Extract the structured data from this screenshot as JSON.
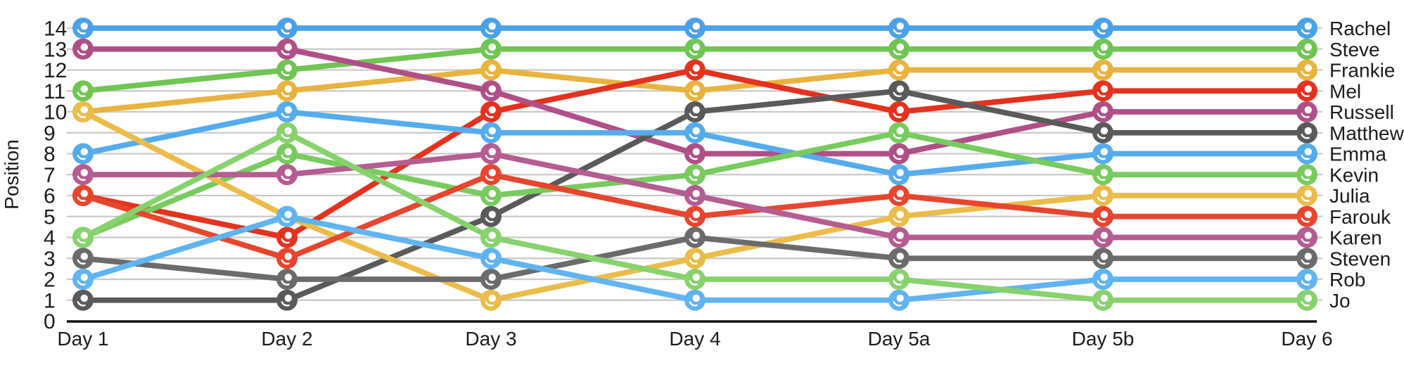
{
  "chart_data": {
    "type": "line",
    "subtype": "bump-rank-chart",
    "title": "",
    "xlabel": "",
    "ylabel": "Position",
    "x_categories": [
      "Day 1",
      "Day 2",
      "Day 3",
      "Day 4",
      "Day 5a",
      "Day 5b",
      "Day 6"
    ],
    "y_ticks": [
      0,
      1,
      2,
      3,
      4,
      5,
      6,
      7,
      8,
      9,
      10,
      11,
      12,
      13,
      14
    ],
    "ylim": [
      0,
      14
    ],
    "grid": "horizontal-light-gray",
    "legend_position": "right-of-last-point",
    "marker_style": "filled-circle-with-white-hole-and-crescent",
    "colors": {
      "gridline": "#c9c9c9",
      "axis": "#111111",
      "text": "#1b1b1b"
    },
    "series": [
      {
        "name": "Rachel",
        "color": "#49a2e9",
        "values": [
          14,
          14,
          14,
          14,
          14,
          14,
          14
        ]
      },
      {
        "name": "Steve",
        "color": "#70c553",
        "values": [
          11,
          12,
          13,
          13,
          13,
          13,
          13
        ]
      },
      {
        "name": "Frankie",
        "color": "#e8b33f",
        "values": [
          10,
          11,
          12,
          11,
          12,
          12,
          12
        ]
      },
      {
        "name": "Mel",
        "color": "#e4321f",
        "values": [
          6,
          4,
          10,
          12,
          10,
          11,
          11
        ]
      },
      {
        "name": "Russell",
        "color": "#b04f87",
        "values": [
          13,
          13,
          11,
          8,
          8,
          10,
          10
        ]
      },
      {
        "name": "Matthew",
        "color": "#5a5a5a",
        "values": [
          1,
          1,
          5,
          10,
          11,
          9,
          9
        ]
      },
      {
        "name": "Emma",
        "color": "#55aced",
        "values": [
          8,
          10,
          9,
          9,
          7,
          8,
          8
        ]
      },
      {
        "name": "Kevin",
        "color": "#78cb5e",
        "values": [
          4,
          8,
          6,
          7,
          9,
          7,
          7
        ]
      },
      {
        "name": "Julia",
        "color": "#ebbc4b",
        "values": [
          10,
          5,
          1,
          3,
          5,
          6,
          6
        ]
      },
      {
        "name": "Farouk",
        "color": "#e8452f",
        "values": [
          6,
          3,
          7,
          5,
          6,
          5,
          5
        ]
      },
      {
        "name": "Karen",
        "color": "#b55c91",
        "values": [
          7,
          7,
          8,
          6,
          4,
          4,
          4
        ]
      },
      {
        "name": "Steven",
        "color": "#6b6b6b",
        "values": [
          3,
          2,
          2,
          4,
          3,
          3,
          3
        ]
      },
      {
        "name": "Rob",
        "color": "#5fb4f1",
        "values": [
          2,
          5,
          3,
          1,
          1,
          2,
          2
        ]
      },
      {
        "name": "Jo",
        "color": "#88d26e",
        "values": [
          4,
          9,
          4,
          2,
          2,
          1,
          1
        ]
      }
    ]
  }
}
